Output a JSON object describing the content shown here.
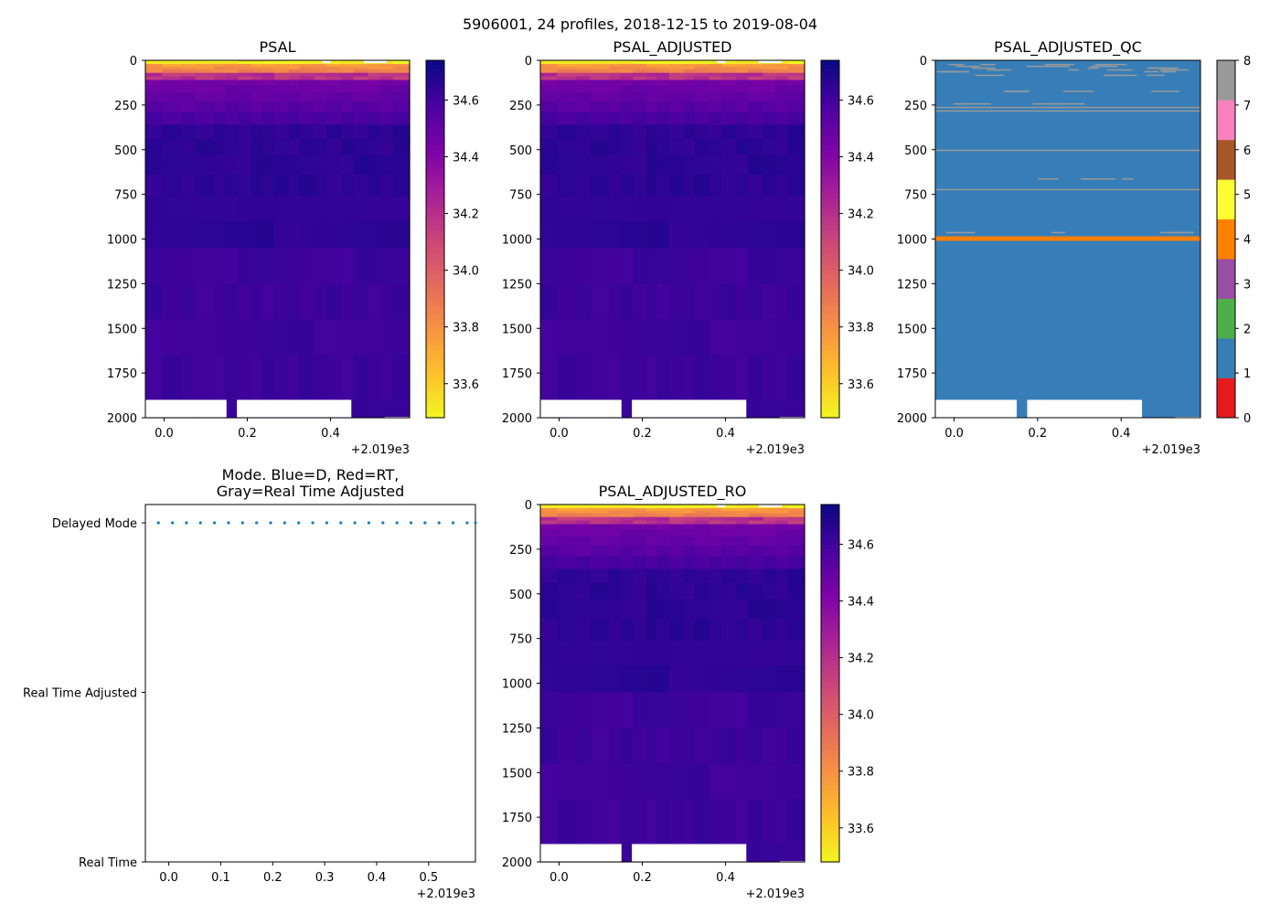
{
  "figure_title": "5906001, 24 profiles, 2018-12-15 to 2019-08-04",
  "colors": {
    "plasma": [
      "#f0f921",
      "#fdc328",
      "#f89441",
      "#e56b5d",
      "#cb4679",
      "#a82296",
      "#7e03a8",
      "#4c02a1",
      "#0d0887"
    ],
    "qc": [
      "#e41a1c",
      "#377eb8",
      "#4daf4a",
      "#984ea3",
      "#ff7f00",
      "#ffff33",
      "#a65628",
      "#f781bf",
      "#999999"
    ],
    "mode_point": "#1f77b4"
  },
  "chart_data": [
    {
      "id": "psal",
      "type": "heatmap",
      "title": "PSAL",
      "ylim": [
        2000,
        0
      ],
      "yticks": [
        "0",
        "250",
        "500",
        "750",
        "1000",
        "1250",
        "1500",
        "1750",
        "2000"
      ],
      "xlim": [
        -0.045,
        0.59
      ],
      "xticks": [
        "0.0",
        "0.2",
        "0.4"
      ],
      "x_offset_label": "+2.019e3",
      "colorbar": {
        "range": [
          33.48,
          34.74
        ],
        "ticks": [
          "33.6",
          "33.8",
          "34.0",
          "34.2",
          "34.4",
          "34.6"
        ]
      }
    },
    {
      "id": "psal_adjusted",
      "type": "heatmap",
      "title": "PSAL_ADJUSTED",
      "ylim": [
        2000,
        0
      ],
      "yticks": [
        "0",
        "250",
        "500",
        "750",
        "1000",
        "1250",
        "1500",
        "1750",
        "2000"
      ],
      "xlim": [
        -0.045,
        0.59
      ],
      "xticks": [
        "0.0",
        "0.2",
        "0.4"
      ],
      "x_offset_label": "+2.019e3",
      "colorbar": {
        "range": [
          33.48,
          34.74
        ],
        "ticks": [
          "33.6",
          "33.8",
          "34.0",
          "34.2",
          "34.4",
          "34.6"
        ]
      }
    },
    {
      "id": "psal_adjusted_qc",
      "type": "heatmap",
      "title": "PSAL_ADJUSTED_QC",
      "ylim": [
        2000,
        0
      ],
      "yticks": [
        "0",
        "250",
        "500",
        "750",
        "1000",
        "1250",
        "1500",
        "1750",
        "2000"
      ],
      "xlim": [
        -0.045,
        0.59
      ],
      "xticks": [
        "0.0",
        "0.2",
        "0.4"
      ],
      "x_offset_label": "+2.019e3",
      "dominant_flag": 1,
      "bad_flag_depth": 990,
      "gray_flag_depths": [
        20,
        30,
        40,
        50,
        60,
        80,
        170,
        240,
        260,
        280,
        500,
        660,
        720,
        960
      ],
      "colorbar": {
        "range": [
          0,
          8
        ],
        "ticks": [
          "0",
          "1",
          "2",
          "3",
          "4",
          "5",
          "6",
          "7",
          "8"
        ]
      }
    },
    {
      "id": "mode",
      "type": "scatter",
      "title_lines": [
        "Mode. Blue=D, Red=RT,",
        "Gray=Real Time Adjusted"
      ],
      "xlim": [
        -0.045,
        0.59
      ],
      "xticks": [
        "0.0",
        "0.1",
        "0.2",
        "0.3",
        "0.4",
        "0.5"
      ],
      "x_offset_label": "+2.019e3",
      "ycategories": [
        "Real Time",
        "Real Time Adjusted",
        "Delayed Mode"
      ],
      "points_x": [
        -0.02,
        0.007,
        0.034,
        0.061,
        0.088,
        0.115,
        0.142,
        0.169,
        0.196,
        0.223,
        0.25,
        0.277,
        0.304,
        0.331,
        0.358,
        0.385,
        0.412,
        0.439,
        0.466,
        0.493,
        0.52,
        0.547,
        0.574,
        0.59
      ],
      "points_mode": "Delayed Mode"
    },
    {
      "id": "psal_adjusted_ro",
      "type": "heatmap",
      "title": "PSAL_ADJUSTED_RO",
      "ylim": [
        2000,
        0
      ],
      "yticks": [
        "0",
        "250",
        "500",
        "750",
        "1000",
        "1250",
        "1500",
        "1750",
        "2000"
      ],
      "xlim": [
        -0.045,
        0.59
      ],
      "xticks": [
        "0.0",
        "0.2",
        "0.4"
      ],
      "x_offset_label": "+2.019e3",
      "colorbar": {
        "range": [
          33.48,
          34.74
        ],
        "ticks": [
          "33.6",
          "33.8",
          "34.0",
          "34.2",
          "34.4",
          "34.6"
        ]
      }
    }
  ]
}
